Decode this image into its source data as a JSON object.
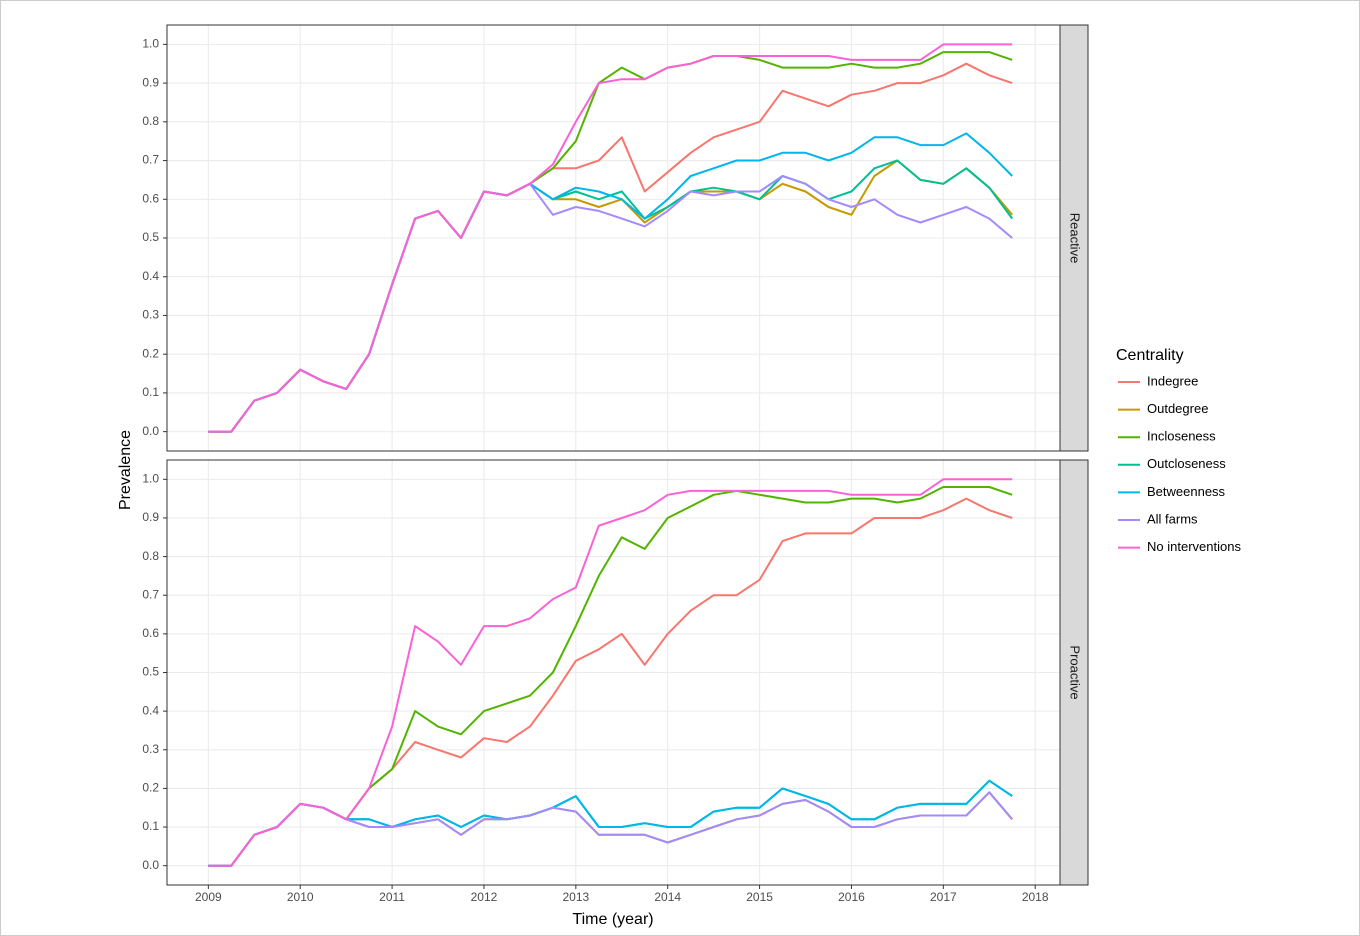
{
  "shared": {
    "ylabel": "Prevalence",
    "xlabel": "Time (year)",
    "legend_title": "Centrality"
  },
  "chart_data": [
    {
      "type": "line",
      "facet": "Reactive",
      "grid": true,
      "xlim": [
        2008.55,
        2018.27
      ],
      "ylim": [
        -0.05,
        1.05
      ],
      "xticks": [
        2009,
        2010,
        2011,
        2012,
        2013,
        2014,
        2015,
        2016,
        2017,
        2018
      ],
      "yticks": [
        {
          "value": 0,
          "label": "0.0"
        },
        {
          "value": 0.1,
          "label": "0.1"
        },
        {
          "value": 0.2,
          "label": "0.2"
        },
        {
          "value": 0.3,
          "label": "0.3"
        },
        {
          "value": 0.4,
          "label": "0.4"
        },
        {
          "value": 0.5,
          "label": "0.5"
        },
        {
          "value": 0.6,
          "label": "0.6"
        },
        {
          "value": 0.7,
          "label": "0.7"
        },
        {
          "value": 0.8,
          "label": "0.8"
        },
        {
          "value": 0.9,
          "label": "0.9"
        },
        {
          "value": 1,
          "label": "1.0"
        }
      ],
      "x": [
        2009,
        2009.25,
        2009.5,
        2009.75,
        2010,
        2010.25,
        2010.5,
        2010.75,
        2011,
        2011.25,
        2011.5,
        2011.75,
        2012,
        2012.25,
        2012.5,
        2012.75,
        2013,
        2013.25,
        2013.5,
        2013.75,
        2014,
        2014.25,
        2014.5,
        2014.75,
        2015,
        2015.25,
        2015.5,
        2015.75,
        2016,
        2016.25,
        2016.5,
        2016.75,
        2017,
        2017.25,
        2017.5,
        2017.75
      ],
      "series": [
        {
          "name": "Indegree",
          "color": "#F8766D",
          "values": [
            0,
            0,
            0.08,
            0.1,
            0.16,
            0.13,
            0.11,
            0.2,
            0.38,
            0.55,
            0.57,
            0.5,
            0.62,
            0.61,
            0.64,
            0.68,
            0.68,
            0.7,
            0.76,
            0.62,
            0.67,
            0.72,
            0.76,
            0.78,
            0.8,
            0.88,
            0.86,
            0.84,
            0.87,
            0.88,
            0.9,
            0.9,
            0.92,
            0.95,
            0.92,
            0.9
          ]
        },
        {
          "name": "Outdegree",
          "color": "#C49A00",
          "values": [
            0,
            0,
            0.08,
            0.1,
            0.16,
            0.13,
            0.11,
            0.2,
            0.38,
            0.55,
            0.57,
            0.5,
            0.62,
            0.61,
            0.64,
            0.6,
            0.6,
            0.58,
            0.6,
            0.54,
            0.58,
            0.62,
            0.62,
            0.62,
            0.6,
            0.64,
            0.62,
            0.58,
            0.56,
            0.66,
            0.7,
            0.65,
            0.64,
            0.68,
            0.63,
            0.56
          ]
        },
        {
          "name": "Incloseness",
          "color": "#53B400",
          "values": [
            0,
            0,
            0.08,
            0.1,
            0.16,
            0.13,
            0.11,
            0.2,
            0.38,
            0.55,
            0.57,
            0.5,
            0.62,
            0.61,
            0.64,
            0.68,
            0.75,
            0.9,
            0.94,
            0.91,
            0.94,
            0.95,
            0.97,
            0.97,
            0.96,
            0.94,
            0.94,
            0.94,
            0.95,
            0.94,
            0.94,
            0.95,
            0.98,
            0.98,
            0.98,
            0.96
          ]
        },
        {
          "name": "Outcloseness",
          "color": "#00C094",
          "values": [
            0,
            0,
            0.08,
            0.1,
            0.16,
            0.13,
            0.11,
            0.2,
            0.38,
            0.55,
            0.57,
            0.5,
            0.62,
            0.61,
            0.64,
            0.6,
            0.62,
            0.6,
            0.62,
            0.55,
            0.58,
            0.62,
            0.63,
            0.62,
            0.6,
            0.66,
            0.64,
            0.6,
            0.62,
            0.68,
            0.7,
            0.65,
            0.64,
            0.68,
            0.63,
            0.55
          ]
        },
        {
          "name": "Betweenness",
          "color": "#00B6EB",
          "values": [
            0,
            0,
            0.08,
            0.1,
            0.16,
            0.13,
            0.11,
            0.2,
            0.38,
            0.55,
            0.57,
            0.5,
            0.62,
            0.61,
            0.64,
            0.6,
            0.63,
            0.62,
            0.6,
            0.55,
            0.6,
            0.66,
            0.68,
            0.7,
            0.7,
            0.72,
            0.72,
            0.7,
            0.72,
            0.76,
            0.76,
            0.74,
            0.74,
            0.77,
            0.72,
            0.66
          ]
        },
        {
          "name": "All farms",
          "color": "#A58AFF",
          "values": [
            0,
            0,
            0.08,
            0.1,
            0.16,
            0.13,
            0.11,
            0.2,
            0.38,
            0.55,
            0.57,
            0.5,
            0.62,
            0.61,
            0.64,
            0.56,
            0.58,
            0.57,
            0.55,
            0.53,
            0.57,
            0.62,
            0.61,
            0.62,
            0.62,
            0.66,
            0.64,
            0.6,
            0.58,
            0.6,
            0.56,
            0.54,
            0.56,
            0.58,
            0.55,
            0.5
          ]
        },
        {
          "name": "No interventions",
          "color": "#FB61D7",
          "values": [
            0,
            0,
            0.08,
            0.1,
            0.16,
            0.13,
            0.11,
            0.2,
            0.38,
            0.55,
            0.57,
            0.5,
            0.62,
            0.61,
            0.64,
            0.69,
            0.8,
            0.9,
            0.91,
            0.91,
            0.94,
            0.95,
            0.97,
            0.97,
            0.97,
            0.97,
            0.97,
            0.97,
            0.96,
            0.96,
            0.96,
            0.96,
            1,
            1,
            1,
            1
          ]
        }
      ]
    },
    {
      "type": "line",
      "facet": "Proactive",
      "grid": true,
      "xlim": [
        2008.55,
        2018.27
      ],
      "ylim": [
        -0.05,
        1.05
      ],
      "xticks": [
        2009,
        2010,
        2011,
        2012,
        2013,
        2014,
        2015,
        2016,
        2017,
        2018
      ],
      "yticks": [
        {
          "value": 0,
          "label": "0.0"
        },
        {
          "value": 0.1,
          "label": "0.1"
        },
        {
          "value": 0.2,
          "label": "0.2"
        },
        {
          "value": 0.3,
          "label": "0.3"
        },
        {
          "value": 0.4,
          "label": "0.4"
        },
        {
          "value": 0.5,
          "label": "0.5"
        },
        {
          "value": 0.6,
          "label": "0.6"
        },
        {
          "value": 0.7,
          "label": "0.7"
        },
        {
          "value": 0.8,
          "label": "0.8"
        },
        {
          "value": 0.9,
          "label": "0.9"
        },
        {
          "value": 1,
          "label": "1.0"
        }
      ],
      "x": [
        2009,
        2009.25,
        2009.5,
        2009.75,
        2010,
        2010.25,
        2010.5,
        2010.75,
        2011,
        2011.25,
        2011.5,
        2011.75,
        2012,
        2012.25,
        2012.5,
        2012.75,
        2013,
        2013.25,
        2013.5,
        2013.75,
        2014,
        2014.25,
        2014.5,
        2014.75,
        2015,
        2015.25,
        2015.5,
        2015.75,
        2016,
        2016.25,
        2016.5,
        2016.75,
        2017,
        2017.25,
        2017.5,
        2017.75
      ],
      "series": [
        {
          "name": "Indegree",
          "color": "#F8766D",
          "values": [
            0,
            0,
            0.08,
            0.1,
            0.16,
            0.15,
            0.12,
            0.2,
            0.25,
            0.32,
            0.3,
            0.28,
            0.33,
            0.32,
            0.36,
            0.44,
            0.53,
            0.56,
            0.6,
            0.52,
            0.6,
            0.66,
            0.7,
            0.7,
            0.74,
            0.84,
            0.86,
            0.86,
            0.86,
            0.9,
            0.9,
            0.9,
            0.92,
            0.95,
            0.92,
            0.9
          ]
        },
        {
          "name": "Outdegree",
          "color": "#C49A00",
          "values": [
            0,
            0,
            0.08,
            0.1,
            0.16,
            0.15,
            0.12,
            0.1,
            0.1,
            0.11,
            0.12,
            0.08,
            0.12,
            0.12,
            0.13,
            0.15,
            0.14,
            0.08,
            0.08,
            0.08,
            0.06,
            0.08,
            0.1,
            0.12,
            0.13,
            0.16,
            0.17,
            0.14,
            0.1,
            0.1,
            0.12,
            0.13,
            0.13,
            0.13,
            0.19,
            0.12
          ]
        },
        {
          "name": "Incloseness",
          "color": "#53B400",
          "values": [
            0,
            0,
            0.08,
            0.1,
            0.16,
            0.15,
            0.12,
            0.2,
            0.25,
            0.4,
            0.36,
            0.34,
            0.4,
            0.42,
            0.44,
            0.5,
            0.62,
            0.75,
            0.85,
            0.82,
            0.9,
            0.93,
            0.96,
            0.97,
            0.96,
            0.95,
            0.94,
            0.94,
            0.95,
            0.95,
            0.94,
            0.95,
            0.98,
            0.98,
            0.98,
            0.96
          ]
        },
        {
          "name": "Outcloseness",
          "color": "#00C094",
          "values": [
            0,
            0,
            0.08,
            0.1,
            0.16,
            0.15,
            0.12,
            0.12,
            0.1,
            0.12,
            0.13,
            0.1,
            0.13,
            0.12,
            0.13,
            0.15,
            0.18,
            0.1,
            0.1,
            0.11,
            0.1,
            0.1,
            0.14,
            0.15,
            0.15,
            0.2,
            0.18,
            0.16,
            0.12,
            0.12,
            0.15,
            0.16,
            0.16,
            0.16,
            0.22,
            0.18
          ]
        },
        {
          "name": "Betweenness",
          "color": "#00B6EB",
          "values": [
            0,
            0,
            0.08,
            0.1,
            0.16,
            0.15,
            0.12,
            0.12,
            0.1,
            0.12,
            0.13,
            0.1,
            0.13,
            0.12,
            0.13,
            0.15,
            0.18,
            0.1,
            0.1,
            0.11,
            0.1,
            0.1,
            0.14,
            0.15,
            0.15,
            0.2,
            0.18,
            0.16,
            0.12,
            0.12,
            0.15,
            0.16,
            0.16,
            0.16,
            0.22,
            0.18
          ]
        },
        {
          "name": "All farms",
          "color": "#A58AFF",
          "values": [
            0,
            0,
            0.08,
            0.1,
            0.16,
            0.15,
            0.12,
            0.1,
            0.1,
            0.11,
            0.12,
            0.08,
            0.12,
            0.12,
            0.13,
            0.15,
            0.14,
            0.08,
            0.08,
            0.08,
            0.06,
            0.08,
            0.1,
            0.12,
            0.13,
            0.16,
            0.17,
            0.14,
            0.1,
            0.1,
            0.12,
            0.13,
            0.13,
            0.13,
            0.19,
            0.12
          ]
        },
        {
          "name": "No interventions",
          "color": "#FB61D7",
          "values": [
            0,
            0,
            0.08,
            0.1,
            0.16,
            0.15,
            0.12,
            0.2,
            0.36,
            0.62,
            0.58,
            0.52,
            0.62,
            0.62,
            0.64,
            0.69,
            0.72,
            0.88,
            0.9,
            0.92,
            0.96,
            0.97,
            0.97,
            0.97,
            0.97,
            0.97,
            0.97,
            0.97,
            0.96,
            0.96,
            0.96,
            0.96,
            1,
            1,
            1,
            1
          ]
        }
      ]
    }
  ]
}
